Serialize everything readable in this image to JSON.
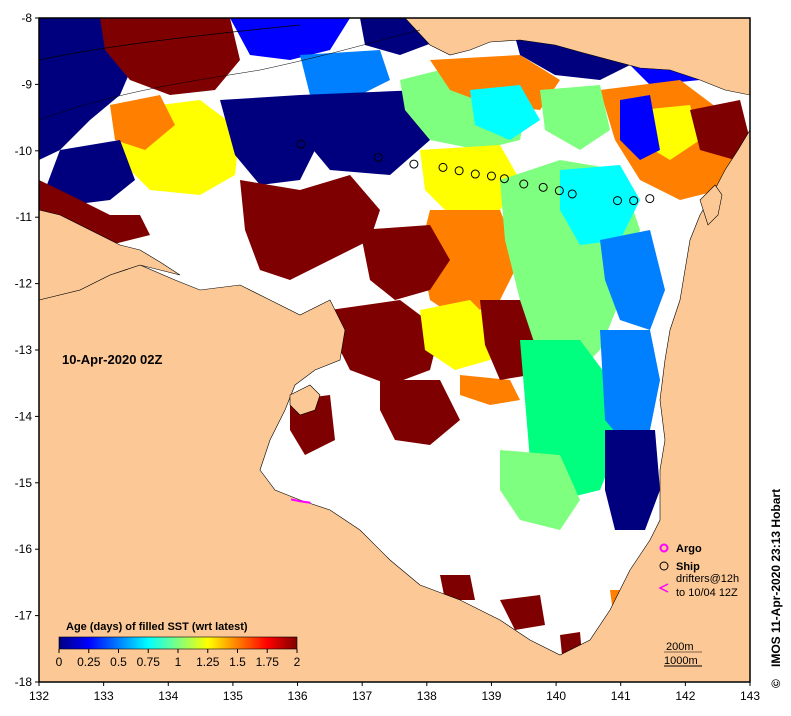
{
  "map": {
    "datetime_label": "10-Apr-2020 02Z",
    "credit": "IMOS 11-Apr-2020 23:13 Hobart",
    "credit_symbol": "©",
    "x_ticks": [
      "132",
      "133",
      "134",
      "135",
      "136",
      "137",
      "138",
      "139",
      "140",
      "141",
      "142",
      "143"
    ],
    "y_ticks": [
      "-8",
      "-9",
      "-10",
      "-11",
      "-12",
      "-13",
      "-14",
      "-15",
      "-16",
      "-17",
      "-18"
    ],
    "lon_range": [
      132,
      143
    ],
    "lat_range": [
      -18,
      -8
    ],
    "land_color": "#fbc896",
    "ocean_nodata_color": "#ffffff"
  },
  "colorbar": {
    "title": "Age (days) of filled SST (wrt latest)",
    "labels": [
      "0",
      "0.25",
      "0.5",
      "0.75",
      "1",
      "1.25",
      "1.5",
      "1.75",
      "2"
    ],
    "colors": [
      "#00007f",
      "#0000ff",
      "#007fff",
      "#00ffff",
      "#7fff7f",
      "#ffff00",
      "#ff7f00",
      "#ff0000",
      "#7f0000"
    ]
  },
  "legend": {
    "argo": "Argo",
    "ship": "Ship",
    "drifters_line1": "drifters@12h",
    "drifters_line2": "to 10/04 12Z",
    "contour_200": "200m",
    "contour_1000": "1000m",
    "argo_color": "#ff00ff",
    "drifter_color": "#ff00ff"
  },
  "ship_track": [
    {
      "lon": 136.05,
      "lat": -9.9
    },
    {
      "lon": 137.25,
      "lat": -10.1
    },
    {
      "lon": 137.8,
      "lat": -10.2
    },
    {
      "lon": 138.25,
      "lat": -10.25
    },
    {
      "lon": 138.5,
      "lat": -10.3
    },
    {
      "lon": 138.75,
      "lat": -10.35
    },
    {
      "lon": 139.0,
      "lat": -10.38
    },
    {
      "lon": 139.2,
      "lat": -10.42
    },
    {
      "lon": 139.5,
      "lat": -10.5
    },
    {
      "lon": 139.8,
      "lat": -10.55
    },
    {
      "lon": 140.05,
      "lat": -10.6
    },
    {
      "lon": 140.25,
      "lat": -10.65
    },
    {
      "lon": 140.95,
      "lat": -10.75
    },
    {
      "lon": 141.2,
      "lat": -10.75
    },
    {
      "lon": 141.45,
      "lat": -10.72
    }
  ],
  "drifter_track": [
    {
      "lon": 135.9,
      "lat": -15.25
    },
    {
      "lon": 136.05,
      "lat": -15.28
    },
    {
      "lon": 136.2,
      "lat": -15.3
    }
  ]
}
